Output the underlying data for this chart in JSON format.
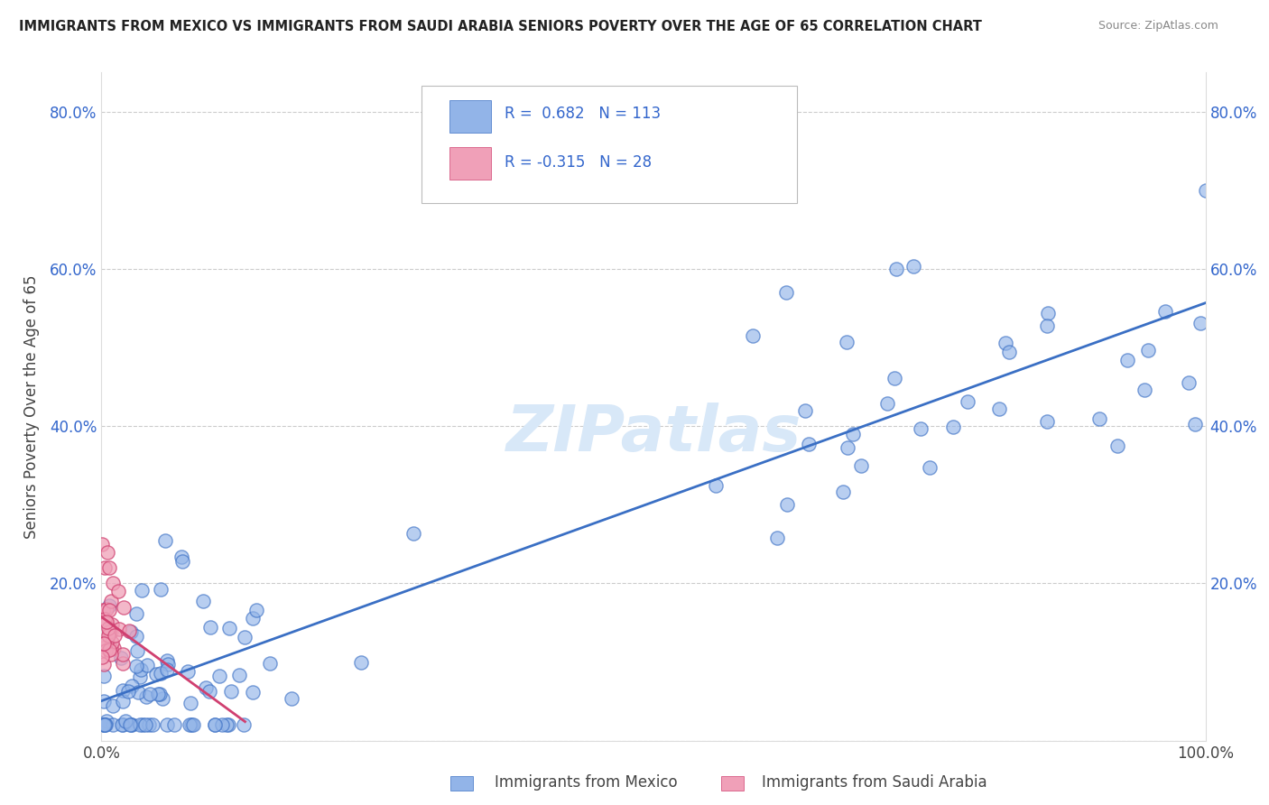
{
  "title": "IMMIGRANTS FROM MEXICO VS IMMIGRANTS FROM SAUDI ARABIA SENIORS POVERTY OVER THE AGE OF 65 CORRELATION CHART",
  "source": "Source: ZipAtlas.com",
  "ylabel": "Seniors Poverty Over the Age of 65",
  "xlabel_legend1": "Immigrants from Mexico",
  "xlabel_legend2": "Immigrants from Saudi Arabia",
  "r_mexico": 0.682,
  "n_mexico": 113,
  "r_saudi": -0.315,
  "n_saudi": 28,
  "xlim": [
    0.0,
    1.0
  ],
  "ylim": [
    0.0,
    0.85
  ],
  "color_mexico": "#92b4e8",
  "color_mexico_line": "#3a6fc4",
  "color_saudi": "#f0a0b8",
  "color_saudi_line": "#d04070",
  "color_text_blue": "#3366cc",
  "watermark_text": "ZIPatlas",
  "background_color": "#ffffff",
  "grid_color": "#cccccc",
  "title_color": "#222222",
  "source_color": "#888888"
}
